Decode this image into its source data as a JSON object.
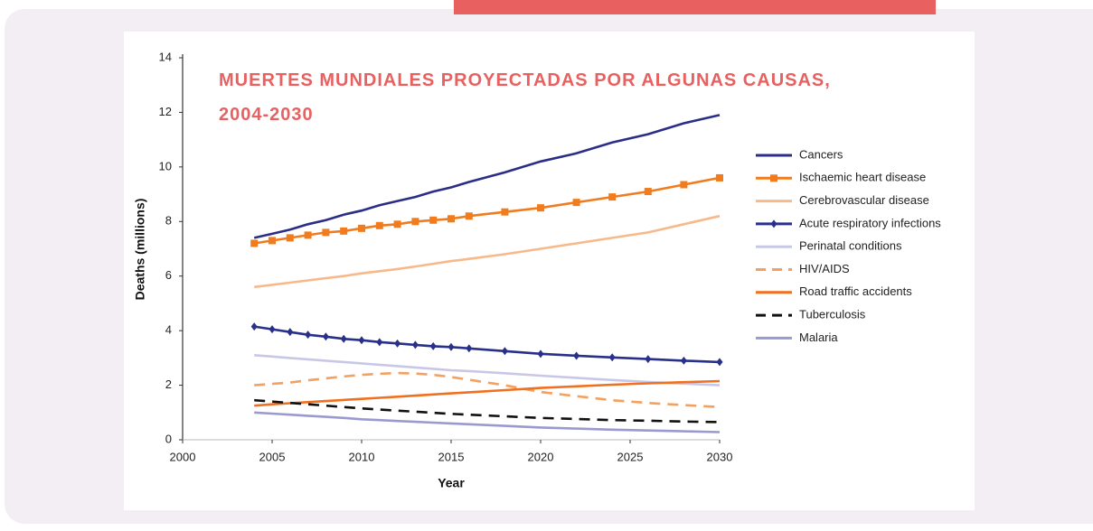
{
  "chart_data": {
    "type": "line",
    "title": "MUERTES MUNDIALES PROYECTADAS POR ALGUNAS CAUSAS, 2004-2030",
    "x_label": "Year",
    "y_label": "Deaths (millions)",
    "x": [
      2004,
      2005,
      2006,
      2007,
      2008,
      2009,
      2010,
      2011,
      2012,
      2013,
      2014,
      2015,
      2016,
      2018,
      2020,
      2022,
      2024,
      2026,
      2028,
      2030
    ],
    "xlim": [
      2000,
      2030
    ],
    "xticks": [
      2000,
      2005,
      2010,
      2015,
      2020,
      2025,
      2030
    ],
    "ylim": [
      0,
      14
    ],
    "yticks": [
      0,
      2,
      4,
      6,
      8,
      10,
      12,
      14
    ],
    "series": [
      {
        "name": "Cancers",
        "color": "#2b2d86",
        "values": [
          7.4,
          7.55,
          7.7,
          7.9,
          8.05,
          8.25,
          8.4,
          8.6,
          8.75,
          8.9,
          9.1,
          9.25,
          9.45,
          9.8,
          10.2,
          10.5,
          10.9,
          11.2,
          11.6,
          11.9
        ]
      },
      {
        "name": "Ischaemic heart disease",
        "color": "#f07c1e",
        "marker": "square",
        "values": [
          7.2,
          7.3,
          7.4,
          7.5,
          7.6,
          7.65,
          7.75,
          7.85,
          7.9,
          8.0,
          8.05,
          8.1,
          8.2,
          8.35,
          8.5,
          8.7,
          8.9,
          9.1,
          9.35,
          9.6
        ]
      },
      {
        "name": "Cerebrovascular disease",
        "color": "#f8b98a",
        "values": [
          5.6,
          5.68,
          5.76,
          5.84,
          5.92,
          6.0,
          6.1,
          6.18,
          6.26,
          6.35,
          6.45,
          6.55,
          6.63,
          6.8,
          7.0,
          7.2,
          7.4,
          7.6,
          7.9,
          8.2
        ]
      },
      {
        "name": "Acute respiratory infections",
        "color": "#28308a",
        "marker": "diamond",
        "values": [
          4.15,
          4.05,
          3.95,
          3.85,
          3.78,
          3.7,
          3.65,
          3.58,
          3.53,
          3.48,
          3.43,
          3.4,
          3.35,
          3.25,
          3.15,
          3.08,
          3.02,
          2.96,
          2.9,
          2.85
        ]
      },
      {
        "name": "Perinatal conditions",
        "color": "#c8c8e6",
        "values": [
          3.1,
          3.05,
          3.0,
          2.95,
          2.9,
          2.85,
          2.8,
          2.75,
          2.7,
          2.65,
          2.6,
          2.55,
          2.52,
          2.44,
          2.35,
          2.27,
          2.19,
          2.12,
          2.06,
          2.0
        ]
      },
      {
        "name": "HIV/AIDS",
        "color": "#f4a060",
        "style": "dashed",
        "values": [
          2.0,
          2.05,
          2.1,
          2.18,
          2.25,
          2.32,
          2.38,
          2.42,
          2.45,
          2.43,
          2.38,
          2.3,
          2.2,
          2.0,
          1.75,
          1.6,
          1.45,
          1.35,
          1.27,
          1.2
        ]
      },
      {
        "name": "Road traffic accidents",
        "color": "#f07020",
        "values": [
          1.25,
          1.3,
          1.34,
          1.38,
          1.42,
          1.46,
          1.5,
          1.54,
          1.58,
          1.62,
          1.66,
          1.7,
          1.74,
          1.82,
          1.9,
          1.96,
          2.02,
          2.07,
          2.11,
          2.15
        ]
      },
      {
        "name": "Tuberculosis",
        "color": "#111111",
        "style": "dashed",
        "values": [
          1.45,
          1.4,
          1.35,
          1.3,
          1.25,
          1.2,
          1.15,
          1.11,
          1.07,
          1.03,
          0.99,
          0.95,
          0.92,
          0.86,
          0.8,
          0.76,
          0.72,
          0.7,
          0.67,
          0.65
        ]
      },
      {
        "name": "Malaria",
        "color": "#9a9ad0",
        "values": [
          1.0,
          0.96,
          0.92,
          0.88,
          0.84,
          0.8,
          0.75,
          0.72,
          0.69,
          0.66,
          0.63,
          0.6,
          0.57,
          0.51,
          0.45,
          0.41,
          0.37,
          0.34,
          0.31,
          0.28
        ]
      }
    ]
  }
}
